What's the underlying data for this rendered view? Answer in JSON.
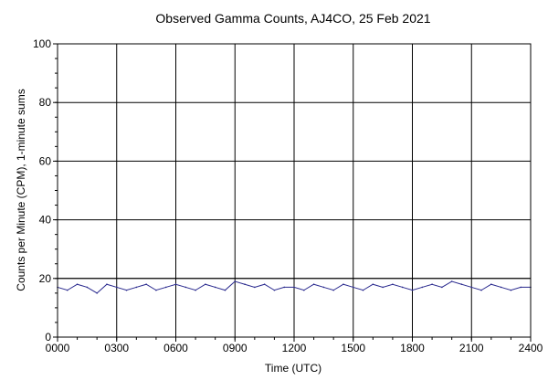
{
  "chart_data": {
    "type": "line",
    "title": "Observed Gamma Counts, AJ4CO, 25 Feb 2021",
    "xlabel": "Time (UTC)",
    "ylabel": "Counts per Minute (CPM), 1-minute sums",
    "xlim": [
      0,
      1440
    ],
    "ylim": [
      0,
      100
    ],
    "x_ticks": [
      {
        "value": 0,
        "label": "0000"
      },
      {
        "value": 180,
        "label": "0300"
      },
      {
        "value": 360,
        "label": "0600"
      },
      {
        "value": 540,
        "label": "0900"
      },
      {
        "value": 720,
        "label": "1200"
      },
      {
        "value": 900,
        "label": "1500"
      },
      {
        "value": 1080,
        "label": "1800"
      },
      {
        "value": 1260,
        "label": "2100"
      },
      {
        "value": 1440,
        "label": "2400"
      }
    ],
    "y_ticks": [
      {
        "value": 0,
        "label": "0"
      },
      {
        "value": 20,
        "label": "20"
      },
      {
        "value": 40,
        "label": "40"
      },
      {
        "value": 60,
        "label": "60"
      },
      {
        "value": 80,
        "label": "80"
      },
      {
        "value": 100,
        "label": "100"
      }
    ],
    "grid": true,
    "reference_line": {
      "y": 20,
      "color": "#000000"
    },
    "series": [
      {
        "color": "#2b2b8f",
        "x": [
          0,
          30,
          60,
          90,
          120,
          150,
          180,
          210,
          240,
          270,
          300,
          330,
          360,
          390,
          420,
          450,
          480,
          510,
          540,
          570,
          600,
          630,
          660,
          690,
          720,
          750,
          780,
          810,
          840,
          870,
          900,
          930,
          960,
          990,
          1020,
          1050,
          1080,
          1110,
          1140,
          1170,
          1200,
          1230,
          1260,
          1290,
          1320,
          1350,
          1380,
          1410,
          1440
        ],
        "values": [
          17,
          16,
          18,
          17,
          15,
          18,
          17,
          16,
          17,
          18,
          16,
          17,
          18,
          17,
          16,
          18,
          17,
          16,
          19,
          18,
          17,
          18,
          16,
          17,
          17,
          16,
          18,
          17,
          16,
          18,
          17,
          16,
          18,
          17,
          18,
          17,
          16,
          17,
          18,
          17,
          19,
          18,
          17,
          16,
          18,
          17,
          16,
          17,
          17
        ]
      }
    ]
  }
}
